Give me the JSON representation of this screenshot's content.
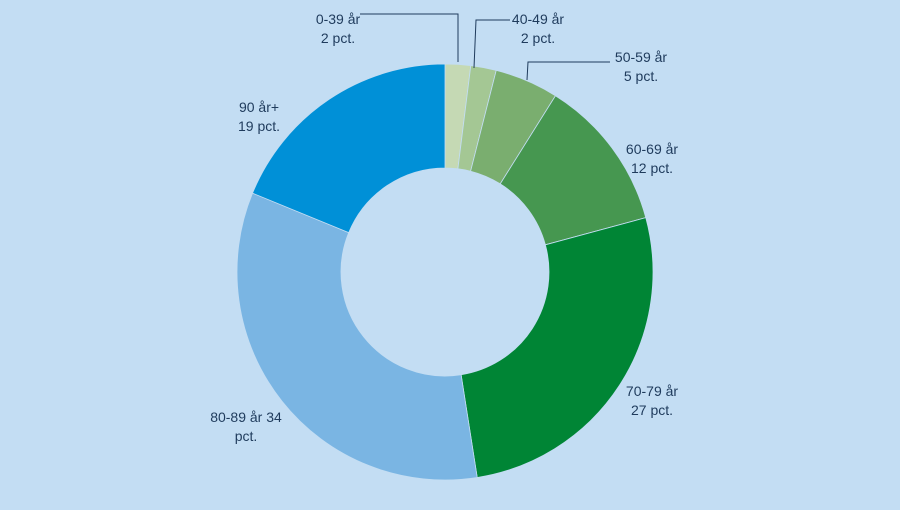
{
  "chart_data": {
    "type": "pie",
    "variant": "donut",
    "start_angle_deg": 0,
    "direction": "clockwise",
    "background_color": "#c3ddf3",
    "slices": [
      {
        "label_lines": [
          "0-39 år",
          "2 pct."
        ],
        "value": 2,
        "color": "#c5d9b4"
      },
      {
        "label_lines": [
          "40-49 år",
          "2 pct."
        ],
        "value": 2,
        "color": "#a4c794"
      },
      {
        "label_lines": [
          "50-59 år",
          "5 pct."
        ],
        "value": 5,
        "color": "#7aae6f"
      },
      {
        "label_lines": [
          "60-69 år",
          "12 pct."
        ],
        "value": 12,
        "color": "#469750"
      },
      {
        "label_lines": [
          "70-79 år",
          "27 pct."
        ],
        "value": 27,
        "color": "#008535"
      },
      {
        "label_lines": [
          "80-89 år 34",
          "pct."
        ],
        "value": 34,
        "color": "#7ab5e3"
      },
      {
        "label_lines": [
          "90 år+",
          "19 pct."
        ],
        "value": 19,
        "color": "#0090d7"
      }
    ]
  }
}
